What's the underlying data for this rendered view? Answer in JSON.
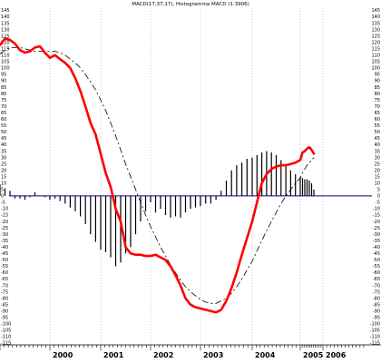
{
  "chart_data": {
    "type": "line",
    "title": "MACD(17,37,17), Histogramma MACD (1.3906)",
    "ylim": [
      -115,
      145
    ],
    "y_tick_step": 5,
    "x_ticks": [
      "2000",
      "2001",
      "2002",
      "2003",
      "2004",
      "2005",
      "2006"
    ],
    "grid": "vertical dotted at year boundaries",
    "colors": {
      "macd": "#ff0000",
      "signal": "#000000",
      "histogram": "#000000",
      "zero_line": "#00008b",
      "grid": "#aaaaaa"
    },
    "x": [
      1999.0,
      1999.1,
      1999.2,
      1999.3,
      1999.4,
      1999.5,
      1999.6,
      1999.7,
      1999.8,
      1999.9,
      2000.0,
      2000.1,
      2000.2,
      2000.3,
      2000.4,
      2000.5,
      2000.6,
      2000.7,
      2000.8,
      2000.9,
      2001.0,
      2001.1,
      2001.2,
      2001.3,
      2001.4,
      2001.5,
      2001.6,
      2001.7,
      2001.8,
      2001.9,
      2002.0,
      2002.1,
      2002.2,
      2002.3,
      2002.4,
      2002.5,
      2002.6,
      2002.7,
      2002.8,
      2002.9,
      2003.0,
      2003.1,
      2003.2,
      2003.3,
      2003.4,
      2003.5,
      2003.6,
      2003.7,
      2003.8,
      2003.9,
      2004.0,
      2004.1,
      2004.2,
      2004.3,
      2004.4,
      2004.5,
      2004.6,
      2004.7,
      2004.8,
      2004.9,
      2005.0,
      2005.1,
      2005.2,
      2005.3,
      2005.4,
      2005.5,
      2005.6
    ],
    "series": [
      {
        "key": "macd",
        "values": [
          118,
          123,
          122,
          119,
          114,
          112,
          113,
          116,
          117,
          112,
          108,
          110,
          107,
          104,
          100,
          92,
          82,
          70,
          57,
          48,
          33,
          18,
          7,
          -10,
          -20,
          -40,
          -45,
          -46,
          -46,
          -47,
          -47,
          -46,
          -48,
          -50,
          -55,
          -62,
          -70,
          -80,
          -85,
          -87,
          -88,
          -89,
          -90,
          -91,
          -89,
          -82,
          -72,
          -60,
          -46,
          -33,
          -20,
          -5,
          10,
          17,
          21,
          23,
          24,
          24,
          25,
          26,
          28,
          34,
          35,
          37,
          38,
          36,
          33
        ]
      },
      {
        "key": "signal",
        "values": [
          111,
          114,
          116,
          116,
          116,
          115,
          114,
          113,
          113,
          113,
          113,
          113,
          112,
          110,
          107,
          104,
          100,
          95,
          89,
          83,
          75,
          67,
          57,
          47,
          36,
          25,
          15,
          5,
          -5,
          -15,
          -24,
          -32,
          -40,
          -47,
          -54,
          -60,
          -66,
          -71,
          -75,
          -78,
          -81,
          -83,
          -84,
          -84,
          -82,
          -80,
          -76,
          -71,
          -65,
          -58,
          -51,
          -43,
          -35,
          -27,
          -20,
          -13,
          -6,
          0,
          5,
          10,
          14,
          18,
          21,
          24,
          26,
          28,
          30
        ]
      },
      {
        "key": "histogram",
        "values": [
          9,
          6,
          4,
          -2,
          -2,
          -3,
          -1,
          3,
          0,
          -1,
          -3,
          -2,
          -4,
          -6,
          -9,
          -12,
          -16,
          -22,
          -30,
          -36,
          -42,
          -44,
          -48,
          -55,
          -52,
          -45,
          -40,
          -30,
          -20,
          -12,
          -5,
          -13,
          -10,
          -15,
          -17,
          -16,
          -17,
          -13,
          -10,
          -9,
          -8,
          -6,
          -6,
          -3,
          4,
          12,
          20,
          24,
          26,
          29,
          30,
          32,
          34,
          35,
          34,
          32,
          28,
          24,
          20,
          17,
          15,
          14,
          13,
          13,
          12,
          10,
          5
        ]
      }
    ]
  }
}
